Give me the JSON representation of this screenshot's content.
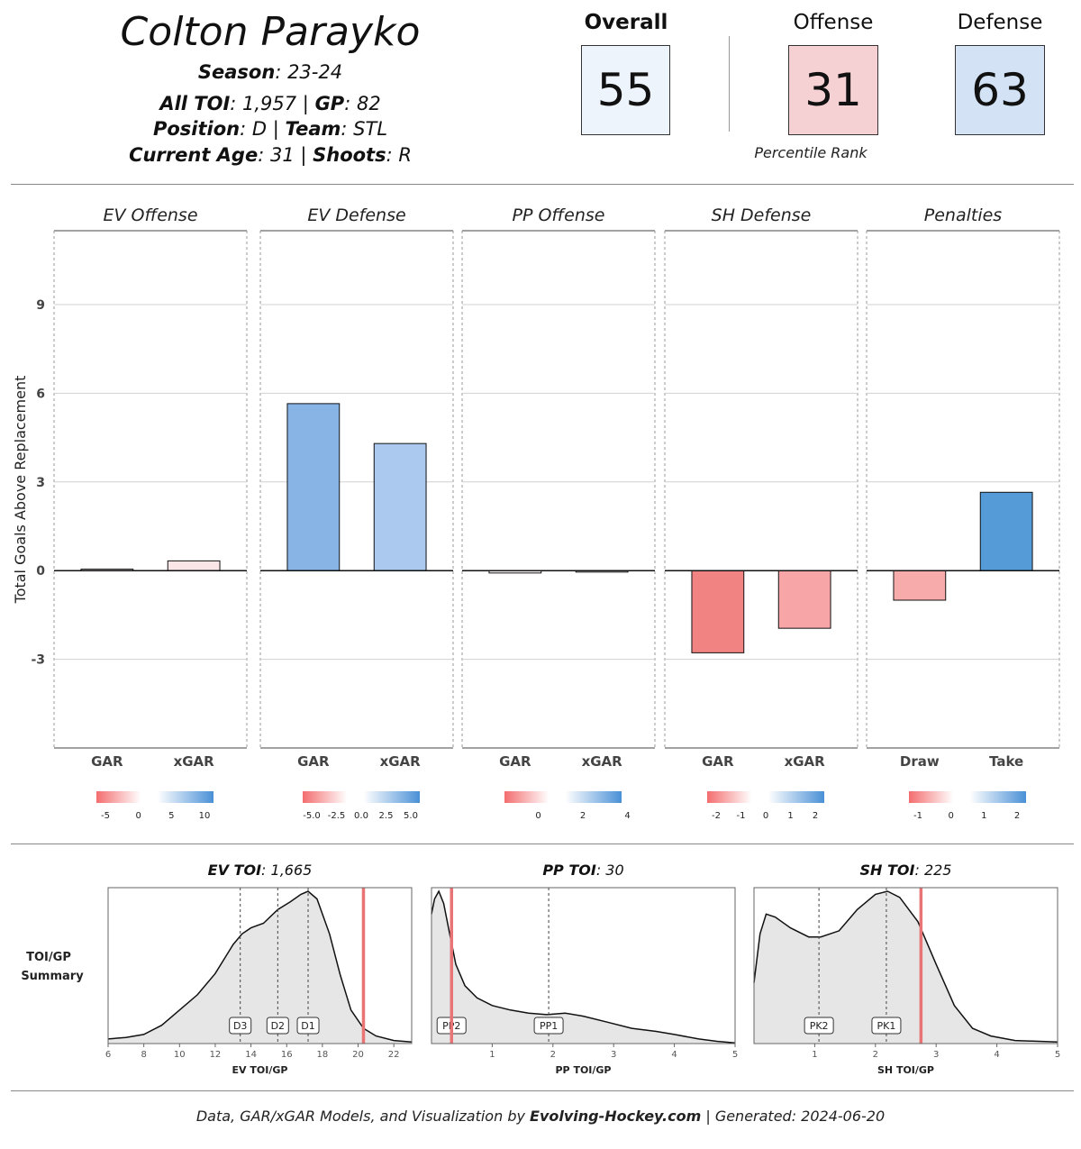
{
  "header": {
    "player_name": "Colton Parayko",
    "season_label": "Season",
    "season_value": ": 23-24",
    "toi_label": "All TOI",
    "toi_value": ": 1,957 | ",
    "gp_label": "GP",
    "gp_value": ": 82",
    "position_label": "Position",
    "position_value": ": D  | ",
    "team_label": "Team",
    "team_value": ": STL",
    "age_label": "Current Age",
    "age_value": ": 31 | ",
    "shoots_label": "Shoots",
    "shoots_value": ": R"
  },
  "scores": {
    "overall_label": "Overall",
    "overall_value": "55",
    "overall_color": "#eef4fb",
    "offense_label": "Offense",
    "offense_value": "31",
    "offense_color": "#f6d1d4",
    "defense_label": "Defense",
    "defense_value": "63",
    "defense_color": "#d3e3f5",
    "percentile_label": "Percentile Rank"
  },
  "chart_data": [
    {
      "type": "bar",
      "ylabel": "Total Goals Above Replacement",
      "ylim": [
        -6,
        11.5
      ],
      "yticks": [
        -3,
        0,
        3,
        6,
        9
      ],
      "grid": true,
      "panels": [
        {
          "title": "EV Offense",
          "categories": [
            "GAR",
            "xGAR"
          ],
          "values": [
            0.05,
            0.33
          ],
          "colors": [
            "#fff4f4",
            "#fbe5e6"
          ],
          "legend_ticks": [
            "-5",
            "0",
            "5",
            "10"
          ]
        },
        {
          "title": "EV Defense",
          "categories": [
            "GAR",
            "xGAR"
          ],
          "values": [
            5.65,
            4.3
          ],
          "colors": [
            "#87b3e5",
            "#abc8ee"
          ],
          "legend_ticks": [
            "-5.0",
            "-2.5",
            "0.0",
            "2.5",
            "5.0"
          ]
        },
        {
          "title": "PP Offense",
          "categories": [
            "GAR",
            "xGAR"
          ],
          "values": [
            -0.08,
            -0.05
          ],
          "colors": [
            "#fffafa",
            "#fffafa"
          ],
          "legend_ticks": [
            "0",
            "2",
            "4"
          ]
        },
        {
          "title": "SH Defense",
          "categories": [
            "GAR",
            "xGAR"
          ],
          "values": [
            -2.78,
            -1.95
          ],
          "colors": [
            "#f28383",
            "#f8a5a7"
          ],
          "legend_ticks": [
            "-2",
            "-1",
            "0",
            "1",
            "2"
          ]
        },
        {
          "title": "Penalties",
          "categories": [
            "Draw",
            "Take"
          ],
          "values": [
            -1.0,
            2.65
          ],
          "colors": [
            "#f8abab",
            "#559bd8"
          ],
          "legend_ticks": [
            "-1",
            "0",
            "1",
            "2"
          ]
        }
      ]
    },
    {
      "type": "area",
      "row_label_1": "TOI/GP",
      "row_label_2": "Summary",
      "panels": [
        {
          "title_bold": "EV TOI",
          "title_rest": ": 1,665",
          "xlabel": "EV TOI/GP",
          "xlim": [
            6,
            23
          ],
          "xticks": [
            "6",
            "8",
            "10",
            "12",
            "14",
            "16",
            "18",
            "20",
            "22"
          ],
          "player_value": 20.3,
          "refs": [
            {
              "label": "D3",
              "x": 13.4
            },
            {
              "label": "D2",
              "x": 15.5
            },
            {
              "label": "D1",
              "x": 17.2
            }
          ],
          "density": [
            [
              6,
              0.03
            ],
            [
              7,
              0.04
            ],
            [
              8,
              0.06
            ],
            [
              9,
              0.12
            ],
            [
              10,
              0.22
            ],
            [
              11,
              0.32
            ],
            [
              12,
              0.46
            ],
            [
              13,
              0.65
            ],
            [
              13.5,
              0.72
            ],
            [
              14,
              0.76
            ],
            [
              14.7,
              0.79
            ],
            [
              15.5,
              0.88
            ],
            [
              16.2,
              0.93
            ],
            [
              16.8,
              0.98
            ],
            [
              17.2,
              1.0
            ],
            [
              17.7,
              0.95
            ],
            [
              18.4,
              0.72
            ],
            [
              19.0,
              0.45
            ],
            [
              19.6,
              0.22
            ],
            [
              20.3,
              0.1
            ],
            [
              21,
              0.05
            ],
            [
              22,
              0.02
            ],
            [
              23,
              0.01
            ]
          ]
        },
        {
          "title_bold": "PP TOI",
          "title_rest": ": 30",
          "xlabel": "PP TOI/GP",
          "xlim": [
            0,
            5
          ],
          "xticks": [
            "1",
            "2",
            "3",
            "4",
            "5"
          ],
          "player_value": 0.33,
          "refs": [
            {
              "label": "PP2",
              "x": 0.33
            },
            {
              "label": "PP1",
              "x": 1.93
            }
          ],
          "density": [
            [
              0,
              0.85
            ],
            [
              0.05,
              0.95
            ],
            [
              0.12,
              1.0
            ],
            [
              0.2,
              0.92
            ],
            [
              0.3,
              0.72
            ],
            [
              0.4,
              0.52
            ],
            [
              0.55,
              0.38
            ],
            [
              0.75,
              0.3
            ],
            [
              1.0,
              0.25
            ],
            [
              1.3,
              0.22
            ],
            [
              1.6,
              0.2
            ],
            [
              1.9,
              0.19
            ],
            [
              2.2,
              0.2
            ],
            [
              2.5,
              0.18
            ],
            [
              2.9,
              0.14
            ],
            [
              3.3,
              0.1
            ],
            [
              3.7,
              0.08
            ],
            [
              4.0,
              0.06
            ],
            [
              4.4,
              0.03
            ],
            [
              4.7,
              0.015
            ],
            [
              5,
              0.005
            ]
          ]
        },
        {
          "title_bold": "SH TOI",
          "title_rest": ": 225",
          "xlabel": "SH TOI/GP",
          "xlim": [
            0,
            5
          ],
          "xticks": [
            "1",
            "2",
            "3",
            "4",
            "5"
          ],
          "player_value": 2.75,
          "refs": [
            {
              "label": "PK2",
              "x": 1.07
            },
            {
              "label": "PK1",
              "x": 2.18
            }
          ],
          "density": [
            [
              0,
              0.4
            ],
            [
              0.1,
              0.72
            ],
            [
              0.2,
              0.85
            ],
            [
              0.35,
              0.83
            ],
            [
              0.6,
              0.76
            ],
            [
              0.9,
              0.7
            ],
            [
              1.1,
              0.7
            ],
            [
              1.4,
              0.74
            ],
            [
              1.7,
              0.88
            ],
            [
              2.0,
              0.98
            ],
            [
              2.2,
              1.0
            ],
            [
              2.4,
              0.96
            ],
            [
              2.7,
              0.8
            ],
            [
              3.0,
              0.52
            ],
            [
              3.3,
              0.25
            ],
            [
              3.6,
              0.1
            ],
            [
              3.9,
              0.05
            ],
            [
              4.3,
              0.02
            ],
            [
              5,
              0.01
            ]
          ]
        }
      ]
    }
  ],
  "footer": {
    "prefix": "Data, GAR/xGAR Models, and Visualization by ",
    "brand": "Evolving-Hockey.com",
    "suffix": " | Generated: 2024-06-20"
  }
}
